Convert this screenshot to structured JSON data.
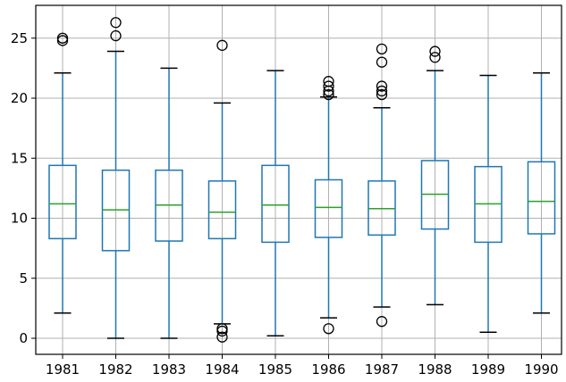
{
  "chart_data": {
    "type": "box",
    "title": "",
    "xlabel": "",
    "ylabel": "",
    "ylim": [
      -1.3,
      27.5
    ],
    "yticks": [
      0,
      5,
      10,
      15,
      20,
      25
    ],
    "grid": true,
    "colors": {
      "box": "#1f77b4",
      "median": "#2ca02c",
      "flier": "#000000",
      "cap": "#000000"
    },
    "categories": [
      "1981",
      "1982",
      "1983",
      "1984",
      "1985",
      "1986",
      "1987",
      "1988",
      "1989",
      "1990"
    ],
    "boxes": [
      {
        "whislo": 2.1,
        "q1": 8.3,
        "med": 11.2,
        "q3": 14.4,
        "whishi": 22.1,
        "fliers": [
          24.8,
          25.0
        ]
      },
      {
        "whislo": 0.0,
        "q1": 7.3,
        "med": 10.7,
        "q3": 14.0,
        "whishi": 23.9,
        "fliers": [
          25.2,
          26.3
        ]
      },
      {
        "whislo": 0.0,
        "q1": 8.1,
        "med": 11.1,
        "q3": 14.0,
        "whishi": 22.5,
        "fliers": []
      },
      {
        "whislo": 1.2,
        "q1": 8.3,
        "med": 10.5,
        "q3": 13.1,
        "whishi": 19.6,
        "fliers": [
          24.4,
          0.8,
          0.6,
          0.1
        ]
      },
      {
        "whislo": 0.2,
        "q1": 8.0,
        "med": 11.1,
        "q3": 14.4,
        "whishi": 22.3,
        "fliers": []
      },
      {
        "whislo": 1.7,
        "q1": 8.4,
        "med": 10.9,
        "q3": 13.2,
        "whishi": 20.1,
        "fliers": [
          20.3,
          20.6,
          21.0,
          21.4,
          0.8
        ]
      },
      {
        "whislo": 2.6,
        "q1": 8.6,
        "med": 10.8,
        "q3": 13.1,
        "whishi": 19.2,
        "fliers": [
          20.3,
          20.6,
          21.0,
          23.0,
          24.1,
          1.4
        ]
      },
      {
        "whislo": 2.8,
        "q1": 9.1,
        "med": 12.0,
        "q3": 14.8,
        "whishi": 22.3,
        "fliers": [
          23.4,
          23.9
        ]
      },
      {
        "whislo": 0.5,
        "q1": 8.0,
        "med": 11.2,
        "q3": 14.3,
        "whishi": 21.9,
        "fliers": []
      },
      {
        "whislo": 2.1,
        "q1": 8.7,
        "med": 11.4,
        "q3": 14.7,
        "whishi": 22.1,
        "fliers": []
      }
    ]
  }
}
